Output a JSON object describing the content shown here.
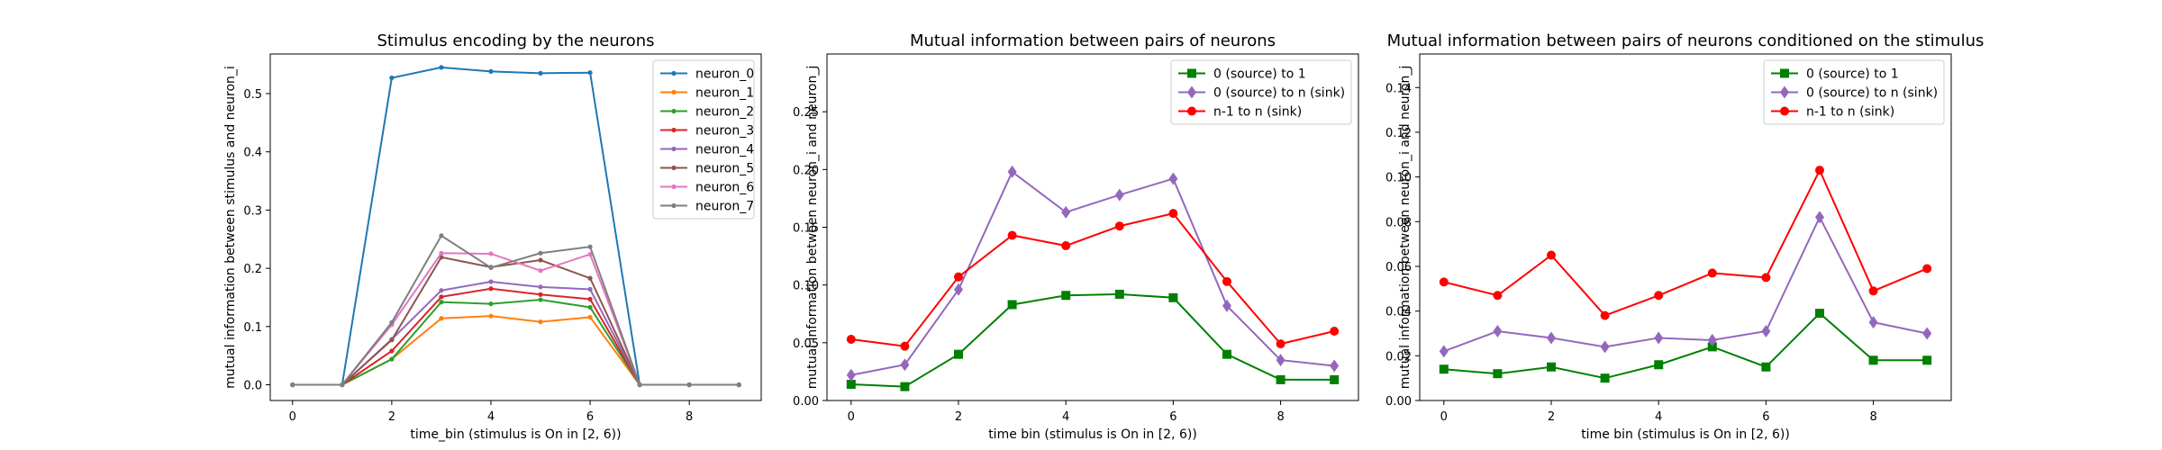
{
  "chart_data": [
    {
      "type": "line",
      "title": "Stimulus encoding by the neurons",
      "xlabel": "time_bin (stimulus is On in [2, 6))",
      "ylabel": "mutual information between stimulus and neuron_i",
      "xlim": [
        -0.45,
        9.45
      ],
      "ylim": [
        -0.027,
        0.568
      ],
      "xticks": [
        0,
        2,
        4,
        6,
        8
      ],
      "yticks": [
        0.0,
        0.1,
        0.2,
        0.3,
        0.4,
        0.5
      ],
      "ytick_labels": [
        "0.0",
        "0.1",
        "0.2",
        "0.3",
        "0.4",
        "0.5"
      ],
      "legend_position": "top-right",
      "x": [
        0,
        1,
        2,
        3,
        4,
        5,
        6,
        7,
        8,
        9
      ],
      "series": [
        {
          "name": "neuron_0",
          "color": "#1f77b4",
          "marker": "dot",
          "values": [
            0,
            0,
            0.527,
            0.545,
            0.538,
            0.535,
            0.536,
            0,
            0,
            0
          ]
        },
        {
          "name": "neuron_1",
          "color": "#ff7f0e",
          "marker": "dot",
          "values": [
            0,
            0,
            0.044,
            0.114,
            0.118,
            0.108,
            0.116,
            0,
            0,
            0
          ]
        },
        {
          "name": "neuron_2",
          "color": "#2ca02c",
          "marker": "dot",
          "values": [
            0,
            0,
            0.044,
            0.142,
            0.139,
            0.146,
            0.133,
            0,
            0,
            0
          ]
        },
        {
          "name": "neuron_3",
          "color": "#d62728",
          "marker": "dot",
          "values": [
            0,
            0,
            0.058,
            0.151,
            0.165,
            0.155,
            0.147,
            0,
            0,
            0
          ]
        },
        {
          "name": "neuron_4",
          "color": "#9467bd",
          "marker": "dot",
          "values": [
            0,
            0,
            0.078,
            0.162,
            0.177,
            0.168,
            0.164,
            0,
            0,
            0
          ]
        },
        {
          "name": "neuron_5",
          "color": "#8c564b",
          "marker": "dot",
          "values": [
            0,
            0,
            0.077,
            0.219,
            0.202,
            0.214,
            0.183,
            0,
            0,
            0
          ]
        },
        {
          "name": "neuron_6",
          "color": "#e377c2",
          "marker": "dot",
          "values": [
            0,
            0,
            0.103,
            0.226,
            0.225,
            0.196,
            0.224,
            0,
            0,
            0
          ]
        },
        {
          "name": "neuron_7",
          "color": "#7f7f7f",
          "marker": "dot",
          "values": [
            0,
            0,
            0.107,
            0.256,
            0.201,
            0.226,
            0.237,
            0,
            0,
            0
          ]
        }
      ]
    },
    {
      "type": "line",
      "title": "Mutual information between pairs of neurons",
      "xlabel": "time bin (stimulus is On in [2, 6))",
      "ylabel": "mutual information between neuron_i and neuron_j",
      "xlim": [
        -0.45,
        9.45
      ],
      "ylim": [
        0.0,
        0.3
      ],
      "xticks": [
        0,
        2,
        4,
        6,
        8
      ],
      "yticks": [
        0.0,
        0.05,
        0.1,
        0.15,
        0.2,
        0.25
      ],
      "ytick_labels": [
        "0.00",
        "0.05",
        "0.10",
        "0.15",
        "0.20",
        "0.25"
      ],
      "legend_position": "top-right",
      "x": [
        0,
        1,
        2,
        3,
        4,
        5,
        6,
        7,
        8,
        9
      ],
      "series": [
        {
          "name": "0 (source) to 1",
          "color": "#008000",
          "marker": "square",
          "values": [
            0.014,
            0.012,
            0.04,
            0.083,
            0.091,
            0.092,
            0.089,
            0.04,
            0.018,
            0.018
          ]
        },
        {
          "name": "0 (source) to n (sink)",
          "color": "#9467bd",
          "marker": "diamond",
          "values": [
            0.022,
            0.031,
            0.096,
            0.198,
            0.163,
            0.178,
            0.192,
            0.082,
            0.035,
            0.03
          ]
        },
        {
          "name": "n-1 to n (sink)",
          "color": "#ff0000",
          "marker": "dot",
          "values": [
            0.053,
            0.047,
            0.107,
            0.143,
            0.134,
            0.151,
            0.162,
            0.103,
            0.049,
            0.06
          ]
        }
      ]
    },
    {
      "type": "line",
      "title": "Mutual information between pairs of neurons conditioned on the stimulus",
      "xlabel": "time bin (stimulus is On in [2, 6))",
      "ylabel": "mutual information between neuron_i and neuron_j",
      "xlim": [
        -0.45,
        9.45
      ],
      "ylim": [
        0.0,
        0.155
      ],
      "xticks": [
        0,
        2,
        4,
        6,
        8
      ],
      "yticks": [
        0.0,
        0.02,
        0.04,
        0.06,
        0.08,
        0.1,
        0.12,
        0.14
      ],
      "ytick_labels": [
        "0.00",
        "0.02",
        "0.04",
        "0.06",
        "0.08",
        "0.10",
        "0.12",
        "0.14"
      ],
      "legend_position": "top-right",
      "x": [
        0,
        1,
        2,
        3,
        4,
        5,
        6,
        7,
        8,
        9
      ],
      "series": [
        {
          "name": "0 (source) to 1",
          "color": "#008000",
          "marker": "square",
          "values": [
            0.014,
            0.012,
            0.015,
            0.01,
            0.016,
            0.024,
            0.015,
            0.039,
            0.018,
            0.018
          ]
        },
        {
          "name": "0 (source) to n (sink)",
          "color": "#9467bd",
          "marker": "diamond",
          "values": [
            0.022,
            0.031,
            0.028,
            0.024,
            0.028,
            0.027,
            0.031,
            0.082,
            0.035,
            0.03
          ]
        },
        {
          "name": "n-1 to n (sink)",
          "color": "#ff0000",
          "marker": "dot",
          "values": [
            0.053,
            0.047,
            0.065,
            0.038,
            0.047,
            0.057,
            0.055,
            0.103,
            0.049,
            0.059
          ]
        }
      ]
    }
  ]
}
